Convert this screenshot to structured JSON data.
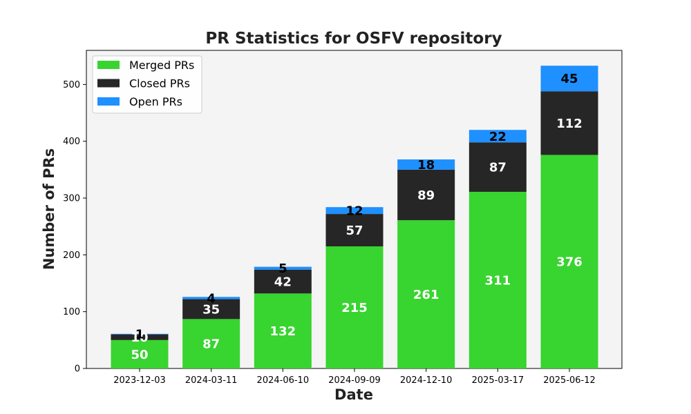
{
  "chart_data": {
    "type": "bar",
    "stacked": true,
    "title": "PR Statistics for OSFV repository",
    "xlabel": "Date",
    "ylabel": "Number of PRs",
    "categories": [
      "2023-12-03",
      "2024-03-11",
      "2024-06-10",
      "2024-09-09",
      "2024-12-10",
      "2025-03-17",
      "2025-06-12"
    ],
    "series": [
      {
        "name": "Merged PRs",
        "color": "#38d430",
        "label_color": "#ffffff",
        "values": [
          50,
          87,
          132,
          215,
          261,
          311,
          376
        ]
      },
      {
        "name": "Closed PRs",
        "color": "#262626",
        "label_color": "#ffffff",
        "values": [
          10,
          35,
          42,
          57,
          89,
          87,
          112
        ]
      },
      {
        "name": "Open PRs",
        "color": "#1e90ff",
        "label_color": "#000000",
        "values": [
          1,
          4,
          5,
          12,
          18,
          22,
          45
        ]
      }
    ],
    "ylim": [
      0,
      560
    ],
    "yticks": [
      0,
      100,
      200,
      300,
      400,
      500
    ],
    "legend_position": "top-left",
    "plot_background": "#f4f4f4",
    "grid": false
  }
}
